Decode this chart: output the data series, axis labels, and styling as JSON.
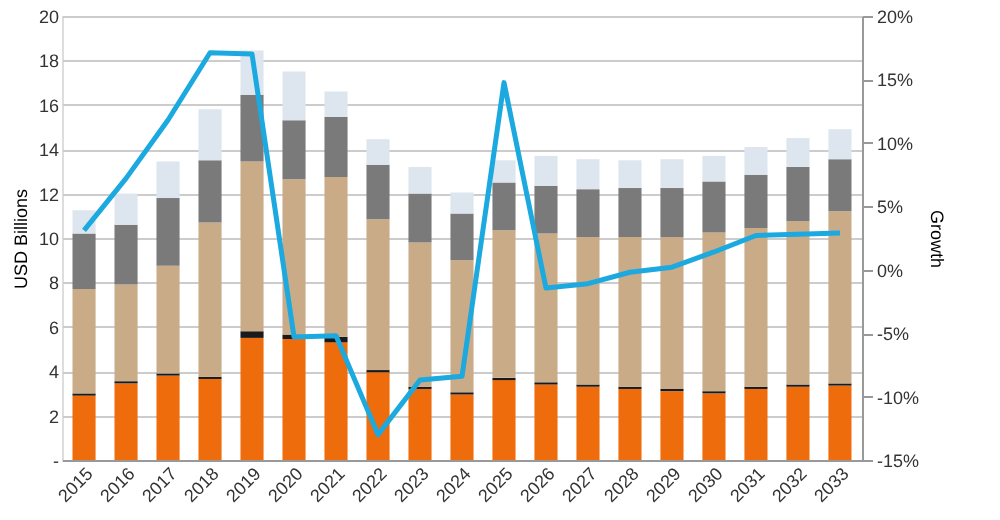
{
  "chart_data": {
    "type": "bar",
    "stacked": true,
    "ylabel": "USD Billions",
    "y2label": "Growth",
    "categories": [
      "2015",
      "2016",
      "2017",
      "2018",
      "2019",
      "2020",
      "2021",
      "2022",
      "2023",
      "2024",
      "2025",
      "2026",
      "2027",
      "2028",
      "2029",
      "2030",
      "2031",
      "2032",
      "2033"
    ],
    "series": [
      {
        "color": "#ee6c0c",
        "values": [
          2.9,
          3.45,
          3.8,
          3.65,
          5.5,
          5.45,
          5.3,
          3.95,
          3.2,
          2.95,
          3.6,
          3.4,
          3.3,
          3.2,
          3.1,
          3.0,
          3.2,
          3.3,
          3.35
        ]
      },
      {
        "color": "#1a1a1a",
        "values": [
          0.1,
          0.1,
          0.1,
          0.1,
          0.3,
          0.2,
          0.25,
          0.1,
          0.1,
          0.1,
          0.1,
          0.1,
          0.1,
          0.1,
          0.1,
          0.1,
          0.1,
          0.1,
          0.1
        ]
      },
      {
        "color": "#c9ab88",
        "values": [
          4.7,
          4.35,
          4.85,
          6.95,
          7.65,
          7.0,
          7.2,
          6.8,
          6.5,
          5.95,
          6.65,
          6.7,
          6.65,
          6.75,
          6.85,
          7.15,
          7.15,
          7.35,
          7.75
        ]
      },
      {
        "color": "#7a7a7a",
        "values": [
          2.5,
          2.7,
          3.05,
          2.8,
          3.0,
          2.65,
          2.7,
          2.45,
          2.2,
          2.1,
          2.15,
          2.15,
          2.15,
          2.2,
          2.2,
          2.3,
          2.4,
          2.45,
          2.35
        ]
      },
      {
        "color": "#dde6ee",
        "values": [
          1.05,
          1.4,
          1.65,
          2.3,
          2.0,
          2.2,
          1.15,
          1.15,
          1.2,
          0.95,
          1.0,
          1.35,
          1.35,
          1.25,
          1.3,
          1.15,
          1.25,
          1.3,
          1.35
        ]
      },
      {
        "type": "line",
        "axis": "y2",
        "color": "#1ba9e0",
        "values": [
          3.1,
          7.2,
          11.8,
          17.1,
          17.0,
          -5.3,
          -5.2,
          -13.0,
          -8.7,
          -8.4,
          14.75,
          -1.45,
          -1.1,
          -0.2,
          0.2,
          1.4,
          2.7,
          2.8,
          2.9
        ]
      }
    ],
    "ylim": [
      0,
      20
    ],
    "yticks": [
      {
        "value": 0,
        "label": "-"
      },
      2,
      4,
      6,
      8,
      10,
      12,
      14,
      16,
      18,
      20
    ],
    "y2lim": [
      -15,
      20
    ],
    "y2ticks": [
      {
        "value": -15,
        "label": "-15%"
      },
      {
        "value": -10,
        "label": "-10%"
      },
      {
        "value": -5,
        "label": "-5%"
      },
      {
        "value": 0,
        "label": "0%"
      },
      {
        "value": 5,
        "label": "5%"
      },
      {
        "value": 10,
        "label": "10%"
      },
      {
        "value": 15,
        "label": "15%"
      },
      {
        "value": 20,
        "label": "20%"
      }
    ],
    "grid": "y"
  }
}
